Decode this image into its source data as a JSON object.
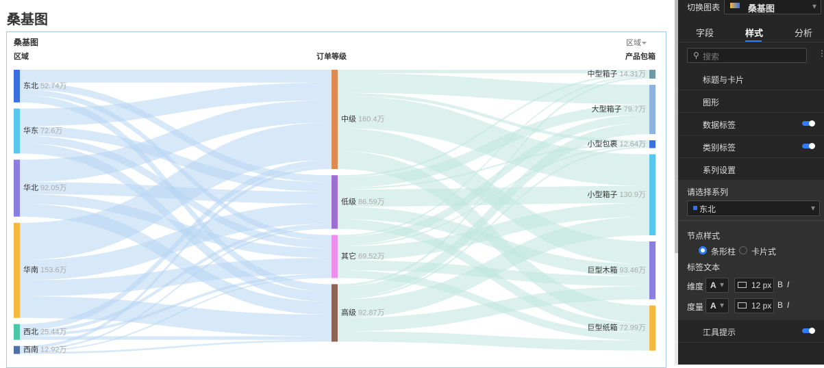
{
  "page_title": "桑基图",
  "chart_data": {
    "type": "sankey",
    "title": "桑基图",
    "filter": "区域",
    "columns": [
      {
        "header": "区域",
        "link_color": "#b7d6f2",
        "nodes": [
          {
            "name": "东北",
            "value": 52.74,
            "value_label": "52.74万",
            "color": "#3a6fe0"
          },
          {
            "name": "华东",
            "value": 72.6,
            "value_label": "72.6万",
            "color": "#57c7ef"
          },
          {
            "name": "华北",
            "value": 92.05,
            "value_label": "92.05万",
            "color": "#8a7ee0"
          },
          {
            "name": "华南",
            "value": 153.6,
            "value_label": "153.6万",
            "color": "#f6b940"
          },
          {
            "name": "西北",
            "value": 25.44,
            "value_label": "25.44万",
            "color": "#4bc8a8"
          },
          {
            "name": "西南",
            "value": 12.92,
            "value_label": "12.92万",
            "color": "#4e6fa8"
          }
        ]
      },
      {
        "header": "订单等级",
        "link_color": "#bfe6df",
        "nodes": [
          {
            "name": "中级",
            "value": 160.4,
            "value_label": "160.4万",
            "color": "#dd8a4f"
          },
          {
            "name": "低级",
            "value": 86.59,
            "value_label": "86.59万",
            "color": "#9e6fd0"
          },
          {
            "name": "其它",
            "value": 69.52,
            "value_label": "69.52万",
            "color": "#ee8fee"
          },
          {
            "name": "高级",
            "value": 92.87,
            "value_label": "92.87万",
            "color": "#8c6555"
          }
        ]
      },
      {
        "header": "产品包箱",
        "nodes": [
          {
            "name": "中型箱子",
            "value": 14.31,
            "value_label": "14.31万",
            "color": "#6e9aa8"
          },
          {
            "name": "大型箱子",
            "value": 79.7,
            "value_label": "79.7万",
            "color": "#8db3e0"
          },
          {
            "name": "小型包裹",
            "value": 12.64,
            "value_label": "12.64万",
            "color": "#3a6fe0"
          },
          {
            "name": "小型箱子",
            "value": 130.9,
            "value_label": "130.9万",
            "color": "#57c7ef"
          },
          {
            "name": "巨型木箱",
            "value": 93.46,
            "value_label": "93.46万",
            "color": "#8a7ee0"
          },
          {
            "name": "巨型纸箱",
            "value": 72.99,
            "value_label": "72.99万",
            "color": "#f6b940"
          }
        ]
      }
    ]
  },
  "panel": {
    "switch_label": "切换图表",
    "chart_name": "桑基图",
    "tabs": [
      "字段",
      "样式",
      "分析"
    ],
    "search": "搜索",
    "sections": [
      "标题与卡片",
      "图形",
      "数据标签",
      "类别标签",
      "系列设置"
    ],
    "series_label": "请选择系列",
    "series_value": "东北",
    "node_style": "节点样式",
    "radios": [
      "条形柱",
      "卡片式"
    ],
    "label_text": "标签文本",
    "rows": [
      "维度",
      "度量"
    ],
    "font_a": "A",
    "font_size": "12 px",
    "bold": "B",
    "italic": "I",
    "tooltip": "工具提示"
  }
}
